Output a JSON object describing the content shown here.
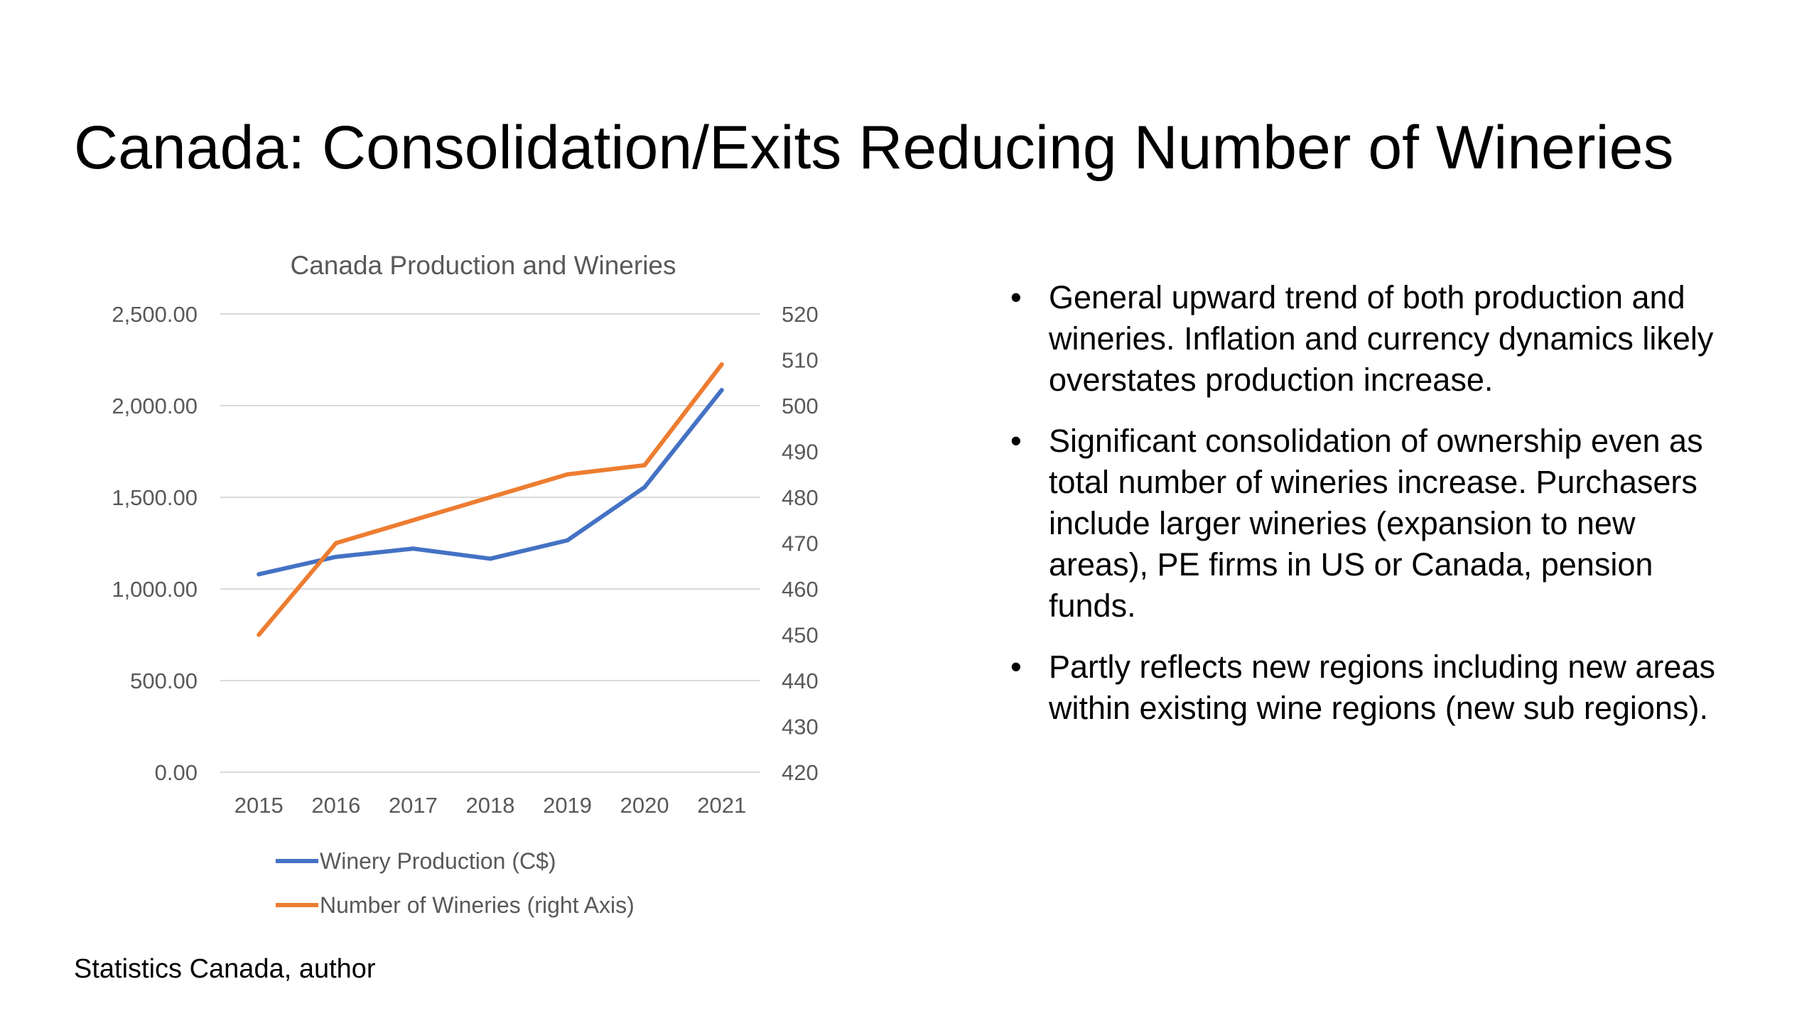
{
  "slide": {
    "title": "Canada: Consolidation/Exits Reducing Number of Wineries",
    "bullets": [
      "General upward trend of both production and wineries. Inflation and currency dynamics likely overstates production increase.",
      "Significant consolidation of ownership even as total number of wineries increase. Purchasers include larger wineries (expansion to new areas), PE firms in US or Canada, pension funds.",
      "Partly reflects new regions including new areas within existing wine regions (new sub regions)."
    ],
    "bullet_glyph": "•",
    "source": "Statistics Canada, author"
  },
  "chart_data": {
    "type": "line",
    "title": "Canada Production and Wineries",
    "categories": [
      "2015",
      "2016",
      "2017",
      "2018",
      "2019",
      "2020",
      "2021"
    ],
    "series": [
      {
        "name": "Winery Production (C$)",
        "axis": "left",
        "color": "#4472C4",
        "values": [
          1080,
          1175,
          1220,
          1165,
          1265,
          1555,
          2085
        ]
      },
      {
        "name": "Number of Wineries (right Axis)",
        "axis": "right",
        "color": "#ED7D31",
        "values": [
          450,
          470,
          475,
          480,
          485,
          487,
          509
        ]
      }
    ],
    "y_left": {
      "range": [
        0,
        2500
      ],
      "ticks": [
        "0.00",
        "500.00",
        "1,000.00",
        "1,500.00",
        "2,000.00",
        "2,500.00"
      ]
    },
    "y_right": {
      "range": [
        420,
        520
      ],
      "ticks": [
        "420",
        "430",
        "440",
        "450",
        "460",
        "470",
        "480",
        "490",
        "500",
        "510",
        "520"
      ]
    },
    "grid": true,
    "legend_position": "bottom",
    "colors": {
      "grid": "#D9D9D9",
      "text": "#595959"
    }
  }
}
